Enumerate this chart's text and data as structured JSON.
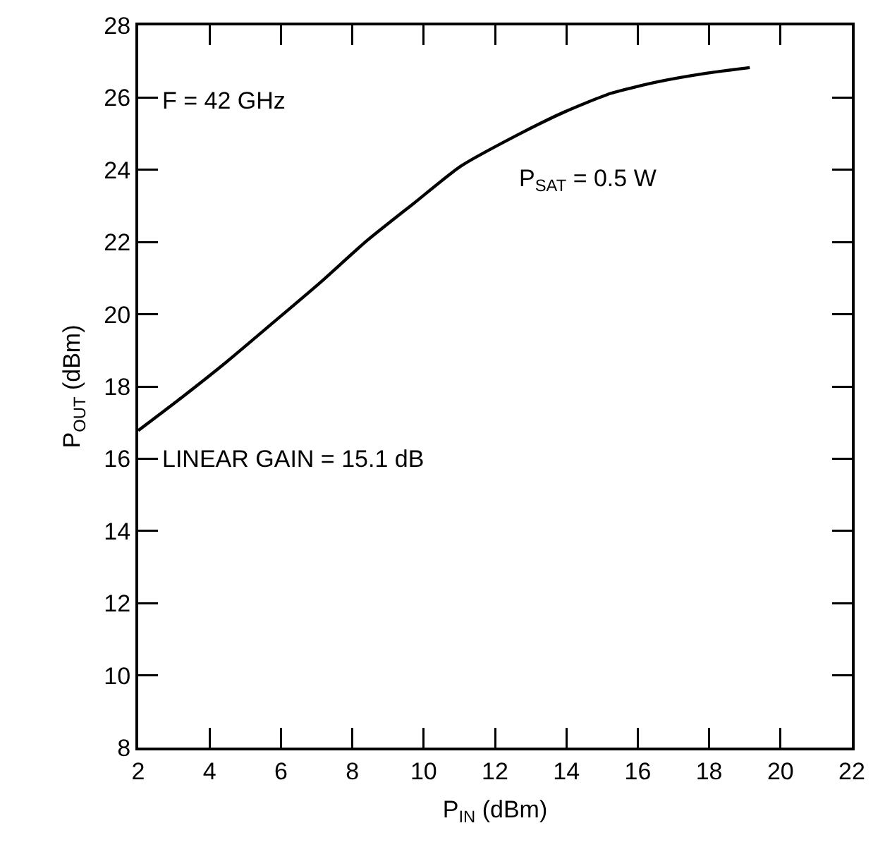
{
  "chart_data": {
    "type": "line",
    "xlabel": "P$_{IN}$ (dBm)",
    "ylabel": "P$_{OUT}$ (dBm)",
    "annotations": [
      "F = 42 GHz",
      "P$_{SAT}$ = 0.5 W",
      "LINEAR GAIN = 15.1 dB"
    ],
    "x": [
      2,
      3.12,
      4.45,
      5.77,
      7.08,
      8.4,
      9.72,
      11.04,
      12.6,
      13.94,
      15.25,
      16.57,
      17.89,
      19.14
    ],
    "series": [
      {
        "color": "#000000",
        "values": [
          16.78,
          17.62,
          18.66,
          19.76,
          20.86,
          22.03,
          23.07,
          24.1,
          24.95,
          25.6,
          26.12,
          26.44,
          26.67,
          26.83
        ]
      }
    ],
    "xlim": [
      2,
      22
    ],
    "xticks": [
      2,
      4,
      6,
      8,
      10,
      12,
      14,
      16,
      18,
      20,
      22
    ],
    "ylim": [
      8,
      28
    ],
    "yticks": [
      8,
      10,
      12,
      14,
      16,
      18,
      20,
      22,
      24,
      26,
      28
    ],
    "grid": false,
    "legend": false,
    "marker": "none",
    "line_style": "solid"
  }
}
